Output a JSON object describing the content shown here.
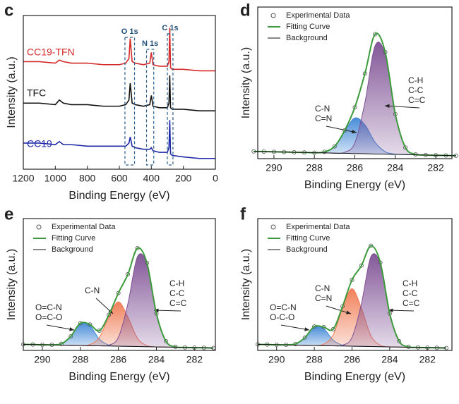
{
  "chart_data": [
    {
      "type": "line",
      "label": "c",
      "x_label": "Binding Energy (eV)",
      "y_label": "Intensity (a.u.)",
      "xlim": [
        1200,
        0
      ],
      "xticks": [
        1200,
        1000,
        800,
        600,
        400,
        200,
        0
      ],
      "ylim": [
        0,
        100
      ],
      "x": [
        1200,
        1100,
        1000,
        975,
        950,
        900,
        800,
        700,
        600,
        560,
        540,
        532,
        520,
        500,
        450,
        410,
        400,
        390,
        350,
        300,
        290,
        285,
        280,
        270,
        200,
        100,
        0
      ],
      "series": [
        {
          "name": "CC19-TFN",
          "color": "#d42a2a",
          "values": [
            70,
            70,
            69,
            71,
            70,
            69,
            69,
            68,
            68,
            69,
            72,
            85,
            70,
            69,
            68,
            69,
            76,
            68,
            67,
            67,
            70,
            92,
            66,
            65,
            65,
            64,
            64
          ]
        },
        {
          "name": "TFC",
          "color": "#111111",
          "values": [
            43,
            43,
            42,
            45,
            43,
            42,
            42,
            41,
            41,
            42,
            45,
            56,
            43,
            42,
            41,
            42,
            48,
            41,
            40,
            40,
            43,
            61,
            40,
            39,
            39,
            38,
            38
          ]
        },
        {
          "name": "CC19",
          "color": "#1f2aa8",
          "values": [
            17,
            17,
            16,
            18,
            16,
            16,
            15,
            15,
            15,
            15,
            17,
            21,
            15,
            14,
            13,
            13,
            14,
            12,
            11,
            11,
            14,
            32,
            10,
            9,
            8,
            7,
            7
          ]
        }
      ],
      "regions": [
        {
          "label": "O 1s",
          "x": [
            565,
            505
          ]
        },
        {
          "label": "N 1s",
          "x": [
            430,
            385
          ]
        },
        {
          "label": "C 1s",
          "x": [
            300,
            265
          ]
        }
      ]
    },
    {
      "type": "xps",
      "label": "d",
      "x_label": "Binding Energy (eV)",
      "y_label": "Intensity (a.u.)",
      "xlim": [
        290.8,
        281.2
      ],
      "xticks": [
        290,
        288,
        286,
        284,
        282
      ],
      "ylim": [
        0,
        105
      ],
      "legend": "upper left",
      "x": [
        291,
        290.5,
        290,
        289.5,
        289,
        288.5,
        288,
        287.5,
        287,
        286.5,
        286,
        285.5,
        285,
        284.5,
        284,
        283.5,
        283,
        282.5,
        282,
        281.5,
        281
      ],
      "series": [
        {
          "name": "Experimental Data",
          "style": "marker",
          "color": "#555555",
          "values": [
            5.0,
            4.9,
            4.7,
            4.6,
            4.4,
            4.3,
            4.1,
            4.7,
            8.5,
            19.6,
            35.6,
            59.0,
            86.2,
            73.8,
            30.9,
            7.7,
            3.0,
            2.5,
            2.3,
            2.2,
            2.0
          ]
        },
        {
          "name": "Fitting Curve",
          "style": "line",
          "color": "#3c9a3c",
          "values": [
            5.0,
            4.9,
            4.7,
            4.6,
            4.4,
            4.3,
            4.1,
            4.7,
            8.5,
            19.6,
            35.6,
            59.0,
            86.2,
            73.8,
            30.9,
            7.7,
            3.0,
            2.5,
            2.3,
            2.2,
            2.0
          ]
        },
        {
          "name": "Background",
          "style": "line",
          "color": "#111111",
          "values": [
            5.0,
            4.9,
            4.7,
            4.6,
            4.4,
            4.3,
            4.1,
            4.0,
            3.8,
            3.7,
            3.5,
            3.4,
            3.2,
            3.1,
            2.9,
            2.8,
            2.6,
            2.5,
            2.3,
            2.2,
            2.0
          ]
        }
      ],
      "components": [
        {
          "label": [
            "C-N",
            "C=N"
          ],
          "color": "#3d86d6",
          "values": [
            5.0,
            4.9,
            4.7,
            4.6,
            4.4,
            4.3,
            4.1,
            4.7,
            8.5,
            18.9,
            28.2,
            23.4,
            11.3,
            4.8,
            3.1,
            2.8,
            2.6,
            2.5,
            2.3,
            2.2,
            2.0
          ]
        },
        {
          "label": [
            "C-H",
            "C-C",
            "C=C"
          ],
          "color": "#7d4f93",
          "values": [
            5.0,
            4.9,
            4.7,
            4.6,
            4.4,
            4.3,
            4.1,
            4.0,
            3.8,
            4.4,
            10.9,
            39.0,
            78.1,
            72.1,
            30.7,
            7.7,
            3.0,
            2.5,
            2.3,
            2.2,
            2.0
          ]
        }
      ]
    },
    {
      "type": "xps",
      "label": "e",
      "x_label": "Binding Energy (eV)",
      "y_label": "Intensity (a.u.)",
      "xlim": [
        291,
        280.9
      ],
      "xticks": [
        290,
        288,
        286,
        284,
        282
      ],
      "ylim": [
        0,
        110
      ],
      "legend": "upper left",
      "x": [
        291,
        290.5,
        290,
        289.5,
        289,
        288.5,
        288,
        287.5,
        287,
        286.5,
        286,
        285.5,
        285,
        284.5,
        284,
        283.5,
        283,
        282.5,
        282,
        281.5,
        281
      ],
      "series": [
        {
          "name": "Experimental Data",
          "style": "marker",
          "color": "#555555",
          "values": [
            5.0,
            4.9,
            4.7,
            4.7,
            5.5,
            11.8,
            22.7,
            21.6,
            16.5,
            29.6,
            47.9,
            63.5,
            85.2,
            73.0,
            30.7,
            7.7,
            3.0,
            2.5,
            2.3,
            2.2,
            2.0
          ]
        },
        {
          "name": "Fitting Curve",
          "style": "line",
          "color": "#3c9a3c",
          "values": [
            5.0,
            4.9,
            4.7,
            4.7,
            5.5,
            11.8,
            22.7,
            21.6,
            16.5,
            29.6,
            47.9,
            63.5,
            85.2,
            73.0,
            30.7,
            7.7,
            3.0,
            2.5,
            2.3,
            2.2,
            2.0
          ]
        },
        {
          "name": "Background",
          "style": "line",
          "color": "#111111",
          "values": [
            5.0,
            4.9,
            4.7,
            4.6,
            4.4,
            4.3,
            4.1,
            4.0,
            3.8,
            3.7,
            3.5,
            3.4,
            3.2,
            3.1,
            2.9,
            2.8,
            2.6,
            2.5,
            2.3,
            2.2,
            2.0
          ]
        }
      ],
      "components": [
        {
          "label": [
            "O=C-N",
            "O=C-O"
          ],
          "color": "#3d86d6",
          "values": [
            5.0,
            4.9,
            4.7,
            4.7,
            5.5,
            11.8,
            22.6,
            20.7,
            9.4,
            4.4,
            3.5,
            3.4,
            3.2,
            3.1,
            2.9,
            2.8,
            2.6,
            2.5,
            2.3,
            2.2,
            2.0
          ]
        },
        {
          "label": [
            "C-N"
          ],
          "color": "#f07a52",
          "values": [
            5.0,
            4.9,
            4.7,
            4.6,
            4.4,
            4.3,
            4.2,
            4.9,
            10.9,
            28.2,
            40.5,
            27.9,
            10.3,
            4.0,
            2.9,
            2.8,
            2.6,
            2.5,
            2.3,
            2.2,
            2.0
          ]
        },
        {
          "label": [
            "C-H",
            "C-C",
            "C=C"
          ],
          "color": "#7d4f93",
          "values": [
            5.0,
            4.9,
            4.7,
            4.6,
            4.4,
            4.3,
            4.1,
            4.0,
            3.8,
            4.4,
            10.9,
            39.0,
            78.1,
            72.1,
            30.7,
            7.7,
            3.0,
            2.5,
            2.3,
            2.2,
            2.0
          ]
        }
      ]
    },
    {
      "type": "xps",
      "label": "f",
      "x_label": "Binding Energy (eV)",
      "y_label": "Intensity (a.u.)",
      "xlim": [
        291,
        280.7
      ],
      "xticks": [
        290,
        288,
        286,
        284,
        282
      ],
      "ylim": [
        0,
        110
      ],
      "legend": "upper left",
      "x": [
        291,
        290.5,
        290,
        289.5,
        289,
        288.5,
        288,
        287.5,
        287,
        286.5,
        286,
        285.5,
        285,
        284.5,
        284,
        283.5,
        283,
        282.5,
        282,
        281.5,
        281
      ],
      "series": [
        {
          "name": "Experimental Data",
          "style": "marker",
          "color": "#555555",
          "values": [
            5.0,
            4.9,
            4.7,
            4.7,
            5.4,
            10.7,
            19.9,
            19.4,
            17.7,
            36.8,
            58.9,
            70.8,
            87.3,
            73.3,
            30.8,
            7.7,
            3.0,
            2.5,
            2.3,
            2.2,
            2.0
          ]
        },
        {
          "name": "Fitting Curve",
          "style": "line",
          "color": "#3c9a3c",
          "values": [
            5.0,
            4.9,
            4.7,
            4.7,
            5.4,
            10.7,
            19.9,
            19.4,
            17.7,
            36.8,
            58.9,
            70.8,
            87.3,
            73.3,
            30.8,
            7.7,
            3.0,
            2.5,
            2.3,
            2.2,
            2.0
          ]
        },
        {
          "name": "Background",
          "style": "line",
          "color": "#111111",
          "values": [
            5.0,
            4.9,
            4.7,
            4.6,
            4.4,
            4.3,
            4.1,
            4.0,
            3.8,
            3.7,
            3.5,
            3.4,
            3.2,
            3.1,
            2.9,
            2.8,
            2.6,
            2.5,
            2.3,
            2.2,
            2.0
          ]
        }
      ],
      "components": [
        {
          "label": [
            "O=C-N",
            "O-C-O"
          ],
          "color": "#3d86d6",
          "values": [
            5.0,
            4.9,
            4.7,
            4.7,
            5.4,
            10.7,
            19.8,
            18.2,
            8.5,
            4.3,
            3.5,
            3.4,
            3.2,
            3.1,
            2.9,
            2.8,
            2.6,
            2.5,
            2.3,
            2.2,
            2.0
          ]
        },
        {
          "label": [
            "C-N",
            "C=N"
          ],
          "color": "#f07a52",
          "values": [
            5.0,
            4.9,
            4.7,
            4.6,
            4.4,
            4.3,
            4.2,
            5.2,
            13.0,
            35.5,
            51.5,
            35.2,
            12.4,
            4.3,
            3.0,
            2.8,
            2.6,
            2.5,
            2.3,
            2.2,
            2.0
          ]
        },
        {
          "label": [
            "C-H",
            "C-C",
            "C=C"
          ],
          "color": "#7d4f93",
          "values": [
            5.0,
            4.9,
            4.7,
            4.6,
            4.4,
            4.3,
            4.1,
            4.0,
            3.8,
            4.4,
            10.9,
            39.0,
            78.1,
            72.1,
            30.7,
            7.7,
            3.0,
            2.5,
            2.3,
            2.2,
            2.0
          ]
        }
      ]
    }
  ]
}
